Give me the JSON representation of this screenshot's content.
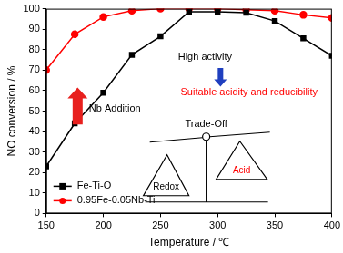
{
  "chart_data": {
    "type": "line",
    "xlabel": "Temperature / ℃",
    "ylabel": "NO conversion / %",
    "x": [
      150,
      175,
      200,
      225,
      250,
      275,
      300,
      325,
      350,
      375,
      400
    ],
    "series": [
      {
        "name": "Fe-Ti-O",
        "color": "#000000",
        "marker": "square",
        "values": [
          23,
          44,
          59,
          77.5,
          86.5,
          98.5,
          98.5,
          98,
          94,
          85.5,
          77
        ]
      },
      {
        "name": "0.95Fe-0.05Nb-Ti",
        "color": "#ff0000",
        "marker": "circle",
        "values": [
          70,
          87.5,
          96,
          99,
          100,
          100,
          100,
          99.5,
          99,
          97,
          95.5
        ]
      }
    ],
    "xlim": [
      150,
      400
    ],
    "xticks": [
      150,
      200,
      250,
      300,
      350,
      400
    ],
    "ylim": [
      0,
      100
    ],
    "yticks": [
      0,
      10,
      20,
      30,
      40,
      50,
      60,
      70,
      80,
      90,
      100
    ],
    "grid": false,
    "legend": "lower left",
    "annotations": [
      {
        "text": "Nb Addition",
        "color": "#000000"
      },
      {
        "text": "High activity",
        "color": "#000000"
      },
      {
        "text": "Suitable acidity and reducibility",
        "color": "#ff0000"
      },
      {
        "text": "Trade-Off",
        "color": "#000000"
      },
      {
        "text": "Redox",
        "color": "#000000"
      },
      {
        "text": "Acid",
        "color": "#ff0000"
      }
    ]
  }
}
